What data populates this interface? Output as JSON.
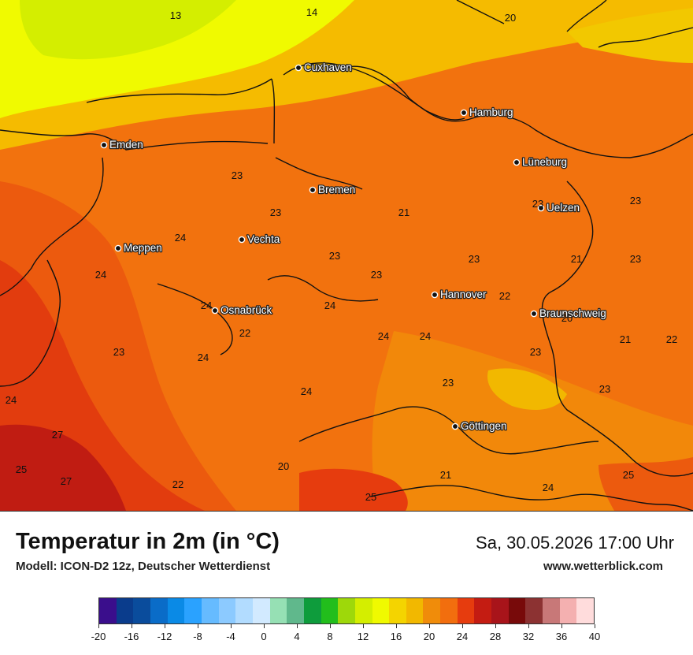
{
  "map": {
    "cities": [
      {
        "name": "Cuxhaven",
        "key": "cuxhaven"
      },
      {
        "name": "Hamburg",
        "key": "hamburg"
      },
      {
        "name": "Emden",
        "key": "emden"
      },
      {
        "name": "Lüneburg",
        "key": "lueneburg"
      },
      {
        "name": "Bremen",
        "key": "bremen"
      },
      {
        "name": "Uelzen",
        "key": "uelzen"
      },
      {
        "name": "Vechta",
        "key": "vechta"
      },
      {
        "name": "Meppen",
        "key": "meppen"
      },
      {
        "name": "Hannover",
        "key": "hannover"
      },
      {
        "name": "Osnabrück",
        "key": "osnabrueck"
      },
      {
        "name": "Braunschweig",
        "key": "braunschweig"
      },
      {
        "name": "Göttingen",
        "key": "goettingen"
      }
    ],
    "temperature_labels": [
      "13",
      "14",
      "20",
      "23",
      "23",
      "21",
      "23",
      "24",
      "23",
      "23",
      "21",
      "23",
      "24",
      "23",
      "23",
      "22",
      "24",
      "24",
      "20",
      "22",
      "24",
      "24",
      "21",
      "22",
      "23",
      "24",
      "23",
      "23",
      "24",
      "23",
      "24",
      "27",
      "20",
      "21",
      "25",
      "27",
      "22",
      "25",
      "24",
      "25"
    ]
  },
  "footer": {
    "title": "Temperatur in 2m (in °C)",
    "model": "Modell: ICON-D2 12z, Deutscher Wetterdienst",
    "datetime": "Sa, 30.05.2026 17:00 Uhr",
    "website": "www.wetterblick.com"
  },
  "legend": {
    "tick_labels": [
      "-20",
      "-16",
      "-12",
      "-8",
      "-4",
      "0",
      "4",
      "8",
      "12",
      "16",
      "20",
      "24",
      "28",
      "32",
      "36",
      "40"
    ],
    "colors": [
      "#3a0e8c",
      "#0a3c8c",
      "#0a4c9c",
      "#0a6cc8",
      "#0a8ae6",
      "#2aa2ff",
      "#66bbff",
      "#8ccaff",
      "#b2dcff",
      "#d2eaff",
      "#96e0b4",
      "#60b88c",
      "#0e9c3c",
      "#22be1c",
      "#9ed80a",
      "#d4ee00",
      "#f0fa00",
      "#f4d400",
      "#f2b800",
      "#f08c0a",
      "#f26e0e",
      "#e63c0e",
      "#c41c12",
      "#a8141a",
      "#780a0a",
      "#8c3232",
      "#c87878",
      "#f4b0b0",
      "#ffdcdc"
    ]
  }
}
